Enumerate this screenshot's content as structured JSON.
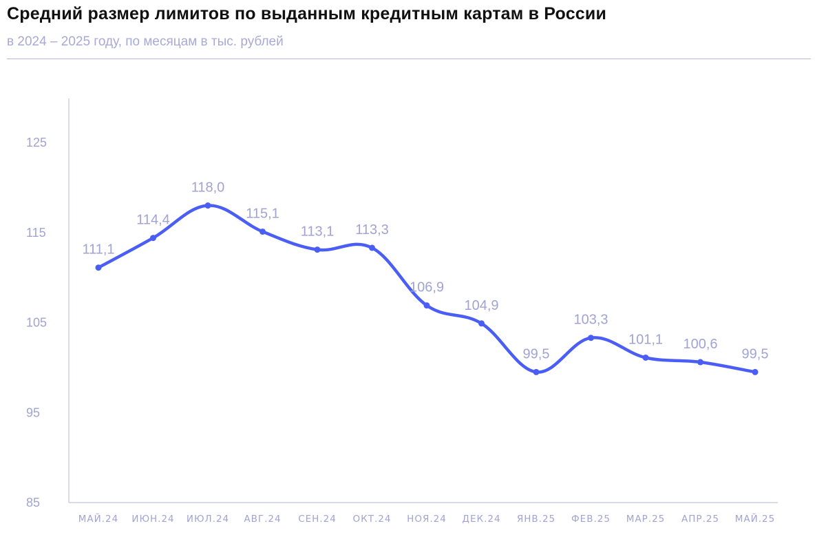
{
  "header": {
    "title": "Средний размер лимитов по выданным кредитным картам в России",
    "subtitle": "в 2024 – 2025 году, по месяцам в тыс. рублей"
  },
  "colors": {
    "line": "#4a5ef5",
    "labels": "#a0a3d3",
    "axis": "#b4b6dd"
  },
  "chart_data": {
    "type": "line",
    "title": "Средний размер лимитов по выданным кредитным картам в России",
    "subtitle": "в 2024 – 2025 году, по месяцам в тыс. рублей",
    "categories": [
      "МАЙ.24",
      "ИЮН.24",
      "ИЮЛ.24",
      "АВГ.24",
      "СЕН.24",
      "ОКТ.24",
      "НОЯ.24",
      "ДЕК.24",
      "ЯНВ.25",
      "ФЕВ.25",
      "МАР.25",
      "АПР.25",
      "МАЙ.25"
    ],
    "values": [
      111.1,
      114.4,
      118.0,
      115.1,
      113.1,
      113.3,
      106.9,
      104.9,
      99.5,
      103.3,
      101.1,
      100.6,
      99.5
    ],
    "value_labels": [
      "111,1",
      "114,4",
      "118,0",
      "115,1",
      "113,1",
      "113,3",
      "106,9",
      "104,9",
      "99,5",
      "103,3",
      "101,1",
      "100,6",
      "99,5"
    ],
    "yticks": [
      "85",
      "95",
      "105",
      "115",
      "125"
    ],
    "ytick_values": [
      85,
      95,
      105,
      115,
      125
    ],
    "ylim": [
      85,
      130
    ],
    "xlabel": "",
    "ylabel": "",
    "grid": false,
    "legend": "none"
  }
}
